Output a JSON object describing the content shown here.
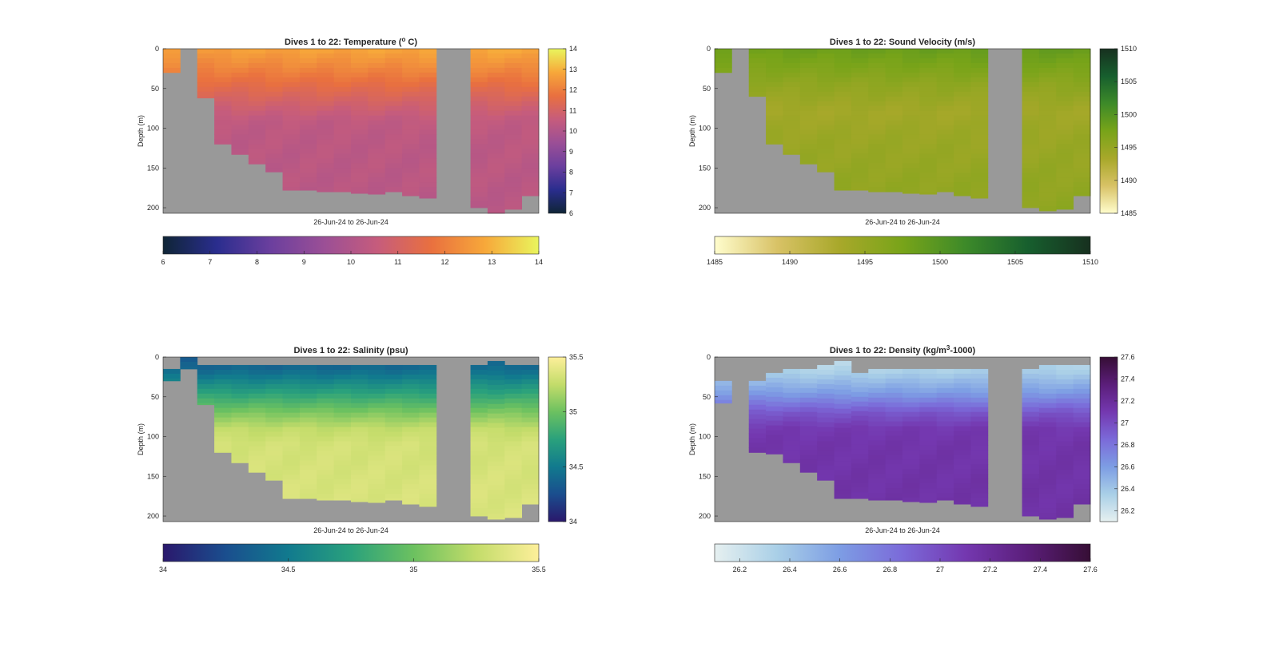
{
  "figure": {
    "background": "#ffffff",
    "nodata_color": "#999999"
  },
  "chart_data": [
    {
      "type": "heatmap",
      "title": "Dives 1 to 22: Temperature (",
      "title_sup": "o",
      "title_end": " C)",
      "xlabel": "26-Jun-24 to 26-Jun-24",
      "ylabel": "Depth (m)",
      "ylim": [
        0,
        207
      ],
      "yticks": [
        "0",
        "50",
        "100",
        "150",
        "200"
      ],
      "columns": 22,
      "clim": [
        6,
        14
      ],
      "colormap": "thermal",
      "colors": [
        "#0f2536",
        "#2a2d8e",
        "#6b3f9e",
        "#9b4f96",
        "#c65c7c",
        "#e9703f",
        "#f7a83a",
        "#e9f55d"
      ],
      "vertical_colorbar_ticks": [
        "14",
        "13",
        "12",
        "11",
        "10",
        "9",
        "8",
        "7",
        "6"
      ],
      "horizontal_colorbar_ticks": [
        "6",
        "7",
        "8",
        "9",
        "10",
        "11",
        "12",
        "13",
        "14"
      ],
      "min_depth": [
        0,
        null,
        0,
        0,
        0,
        0,
        0,
        0,
        0,
        0,
        0,
        0,
        0,
        0,
        0,
        0,
        null,
        null,
        0,
        0,
        0,
        0
      ],
      "max_depth": [
        30,
        null,
        62,
        120,
        133,
        145,
        155,
        178,
        178,
        180,
        180,
        182,
        183,
        180,
        185,
        188,
        null,
        null,
        200,
        207,
        202,
        185
      ],
      "profile": [
        [
          0,
          12.8
        ],
        [
          20,
          12.3
        ],
        [
          45,
          11.6
        ],
        [
          70,
          10.9
        ],
        [
          90,
          10.4
        ],
        [
          110,
          10.3
        ],
        [
          207,
          10.2
        ]
      ]
    },
    {
      "type": "heatmap",
      "title": "Dives 1 to 22: Sound Velocity (m/s)",
      "xlabel": "26-Jun-24 to 26-Jun-24",
      "ylabel": "Depth (m)",
      "ylim": [
        0,
        207
      ],
      "yticks": [
        "0",
        "50",
        "100",
        "150",
        "200"
      ],
      "columns": 22,
      "clim": [
        1485,
        1510
      ],
      "colormap": "speed",
      "colors": [
        "#fffdcd",
        "#d8c266",
        "#a8a82a",
        "#78a419",
        "#3d8a29",
        "#175f2e",
        "#17301f"
      ],
      "vertical_colorbar_ticks": [
        "1510",
        "1505",
        "1500",
        "1495",
        "1490",
        "1485"
      ],
      "horizontal_colorbar_ticks": [
        "1485",
        "1490",
        "1495",
        "1500",
        "1505",
        "1510"
      ],
      "min_depth": [
        0,
        null,
        0,
        0,
        0,
        0,
        0,
        0,
        0,
        0,
        0,
        0,
        0,
        0,
        0,
        0,
        null,
        null,
        0,
        0,
        0,
        0
      ],
      "max_depth": [
        30,
        null,
        60,
        120,
        133,
        145,
        155,
        178,
        178,
        180,
        180,
        182,
        183,
        180,
        185,
        188,
        null,
        null,
        200,
        204,
        202,
        185
      ],
      "profile": [
        [
          0,
          1498.6
        ],
        [
          20,
          1497.3
        ],
        [
          45,
          1495.5
        ],
        [
          80,
          1493.8
        ],
        [
          110,
          1494.5
        ],
        [
          207,
          1495.6
        ]
      ]
    },
    {
      "type": "heatmap",
      "title": "Dives 1 to 22: Salinity (psu)",
      "xlabel": "26-Jun-24 to 26-Jun-24",
      "ylabel": "Depth (m)",
      "ylim": [
        0,
        207
      ],
      "yticks": [
        "0",
        "50",
        "100",
        "150",
        "200"
      ],
      "columns": 22,
      "clim": [
        34,
        35.5
      ],
      "colormap": "haline",
      "colors": [
        "#2a186c",
        "#1a4e8e",
        "#117a8e",
        "#2aa17c",
        "#6cc160",
        "#c3dc6a",
        "#fdef9a"
      ],
      "vertical_colorbar_ticks": [
        "35.5",
        "35",
        "34.5",
        "34"
      ],
      "horizontal_colorbar_ticks": [
        "34",
        "34.5",
        "35",
        "35.5"
      ],
      "min_depth": [
        15,
        0,
        10,
        10,
        10,
        10,
        10,
        10,
        10,
        10,
        10,
        10,
        10,
        10,
        10,
        10,
        null,
        null,
        10,
        5,
        10,
        10
      ],
      "max_depth": [
        30,
        15,
        60,
        120,
        133,
        145,
        155,
        178,
        178,
        180,
        180,
        182,
        183,
        180,
        185,
        188,
        null,
        null,
        200,
        204,
        202,
        185
      ],
      "profile": [
        [
          0,
          34.3
        ],
        [
          20,
          34.45
        ],
        [
          45,
          34.75
        ],
        [
          70,
          35.05
        ],
        [
          90,
          35.25
        ],
        [
          110,
          35.32
        ],
        [
          207,
          35.35
        ]
      ]
    },
    {
      "type": "heatmap",
      "title": "Dives 1 to 22: Density (kg/m",
      "title_sup": "3",
      "title_end": "-1000)",
      "xlabel": "26-Jun-24 to 26-Jun-24",
      "ylabel": "Depth (m)",
      "ylim": [
        0,
        207
      ],
      "yticks": [
        "0",
        "50",
        "100",
        "150",
        "200"
      ],
      "columns": 22,
      "clim": [
        26.1,
        27.6
      ],
      "colormap": "dense",
      "colors": [
        "#e6f0f0",
        "#a9cfe7",
        "#7d9de4",
        "#7b6ad9",
        "#7438b0",
        "#5b1e7a",
        "#360e35"
      ],
      "vertical_colorbar_ticks": [
        "27.6",
        "27.4",
        "27.2",
        "27",
        "26.8",
        "26.6",
        "26.4",
        "26.2"
      ],
      "horizontal_colorbar_ticks": [
        "26.2",
        "26.4",
        "26.6",
        "26.8",
        "27",
        "27.2",
        "27.4",
        "27.6"
      ],
      "min_depth": [
        30,
        null,
        30,
        20,
        15,
        15,
        10,
        5,
        20,
        15,
        15,
        15,
        15,
        15,
        15,
        15,
        null,
        null,
        15,
        10,
        10,
        10
      ],
      "max_depth": [
        58,
        null,
        120,
        122,
        133,
        145,
        155,
        178,
        178,
        180,
        180,
        182,
        183,
        180,
        185,
        188,
        null,
        null,
        200,
        204,
        202,
        185
      ],
      "profile": [
        [
          0,
          26.25
        ],
        [
          20,
          26.35
        ],
        [
          45,
          26.6
        ],
        [
          70,
          26.95
        ],
        [
          90,
          27.1
        ],
        [
          110,
          27.13
        ],
        [
          207,
          27.15
        ]
      ]
    }
  ]
}
